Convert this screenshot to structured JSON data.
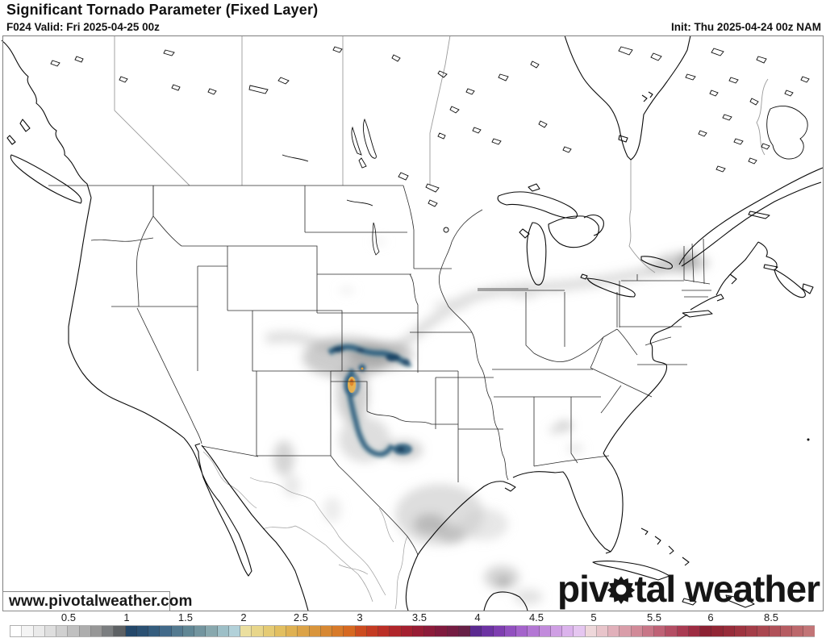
{
  "header": {
    "title": "Significant Tornado Parameter (Fixed Layer)",
    "valid": "F024 Valid: Fri 2025-04-25 00z",
    "init": "Init: Thu 2025-04-24 00z NAM"
  },
  "watermark": "www.pivotalweather.com",
  "logo": {
    "text_left": "piv",
    "text_right": "tal",
    "text_word2": "weather"
  },
  "colorbar": {
    "ticks": [
      {
        "label": "0.5",
        "pct": 7.31
      },
      {
        "label": "1",
        "pct": 14.53
      },
      {
        "label": "1.5",
        "pct": 21.84
      },
      {
        "label": "2",
        "pct": 29.06
      },
      {
        "label": "2.5",
        "pct": 36.17
      },
      {
        "label": "3",
        "pct": 43.49
      },
      {
        "label": "3.5",
        "pct": 50.9
      },
      {
        "label": "4",
        "pct": 58.12
      },
      {
        "label": "4.5",
        "pct": 65.43
      },
      {
        "label": "5",
        "pct": 72.55
      },
      {
        "label": "5.5",
        "pct": 80.06
      },
      {
        "label": "6",
        "pct": 87.07
      },
      {
        "label": "8.5",
        "pct": 94.59
      }
    ],
    "cells": [
      "#ffffff",
      "#f4f4f4",
      "#eaeaea",
      "#dedede",
      "#d0d0d0",
      "#c0c0c0",
      "#adadad",
      "#979797",
      "#7b7e80",
      "#5d6164",
      "#24486a",
      "#2b5173",
      "#355d7e",
      "#426a8a",
      "#547a90",
      "#618795",
      "#73959f",
      "#88a8ae",
      "#9dbfc7",
      "#b2d1d9",
      "#ebdf9f",
      "#e8d68a",
      "#e5cb74",
      "#e2bf60",
      "#dfb152",
      "#dca347",
      "#d9953c",
      "#d78833",
      "#d77a2a",
      "#d66921",
      "#cc4c20",
      "#c43b23",
      "#bb2f27",
      "#b0262b",
      "#a42030",
      "#981d35",
      "#8c1b3a",
      "#801a3e",
      "#741c42",
      "#672047",
      "#5b2a8f",
      "#6c33a2",
      "#7e3eb0",
      "#9150bf",
      "#a463cb",
      "#b377d4",
      "#c28bdc",
      "#cf9fe4",
      "#dbb3ec",
      "#e5c6f0",
      "#eed7da",
      "#e8c4ca",
      "#e1b0ba",
      "#d99da9",
      "#d18a98",
      "#c87687",
      "#bf6276",
      "#b44e64",
      "#a93b52",
      "#9d2c42",
      "#8c2133",
      "#912635",
      "#972c3a",
      "#9e3440",
      "#a43d48",
      "#aa4750",
      "#b05159",
      "#b65c62",
      "#bc686c",
      "#c27577"
    ]
  },
  "data_regions": [
    {
      "area": "Nebraska-Kansas border west-east band",
      "approx_max": 1.5
    },
    {
      "area": "Oklahoma/Texas panhandle core",
      "approx_max": 2.5
    },
    {
      "area": "West Texas southward hook",
      "approx_max": 1.5
    },
    {
      "area": "North-central Texas spot",
      "approx_max": 1.3
    },
    {
      "area": "Upstate New York / Vermont",
      "approx_max": 0.6
    },
    {
      "area": "Gulf of Mexico",
      "approx_max": 0.4
    },
    {
      "area": "Northeast Mexico",
      "approx_max": 0.4
    }
  ]
}
